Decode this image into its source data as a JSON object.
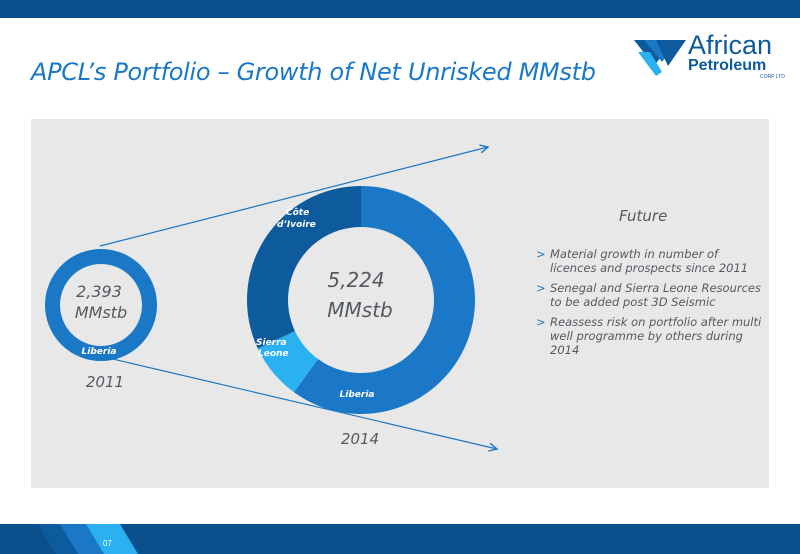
{
  "slide": {
    "title": "APCL’s Portfolio – Growth of Net Unrisked MMstb",
    "page_number": "07"
  },
  "logo": {
    "word1": "African",
    "word2": "Petroleum",
    "sub": "CORP LTD"
  },
  "future": {
    "title": "Future",
    "items": [
      "Material growth in number of licences and prospects since 2011",
      "Senegal and Sierra Leone Resources to be added post 3D Seismic",
      "Reassess risk on portfolio after multi well programme by others during 2014"
    ]
  },
  "chart_data": [
    {
      "type": "pie",
      "year": "2011",
      "center_value": "2,393",
      "center_unit": "MMstb",
      "slices": [
        {
          "label": "Liberia",
          "share": 1.0,
          "color": "#1a78c6"
        }
      ]
    },
    {
      "type": "pie",
      "year": "2014",
      "center_value": "5,224",
      "center_unit": "MMstb",
      "slices": [
        {
          "label": "Liberia",
          "share": 0.6,
          "color": "#1a78c6"
        },
        {
          "label": "Sierra Leone",
          "share": 0.08,
          "color": "#2bb0f2"
        },
        {
          "label": "Côte d’Ivoire",
          "share": 0.32,
          "color": "#0d5a9c"
        }
      ]
    }
  ],
  "colors": {
    "brand_dark": "#0b4f8c",
    "brand": "#1a78c6",
    "panel": "#e8e8e9"
  }
}
